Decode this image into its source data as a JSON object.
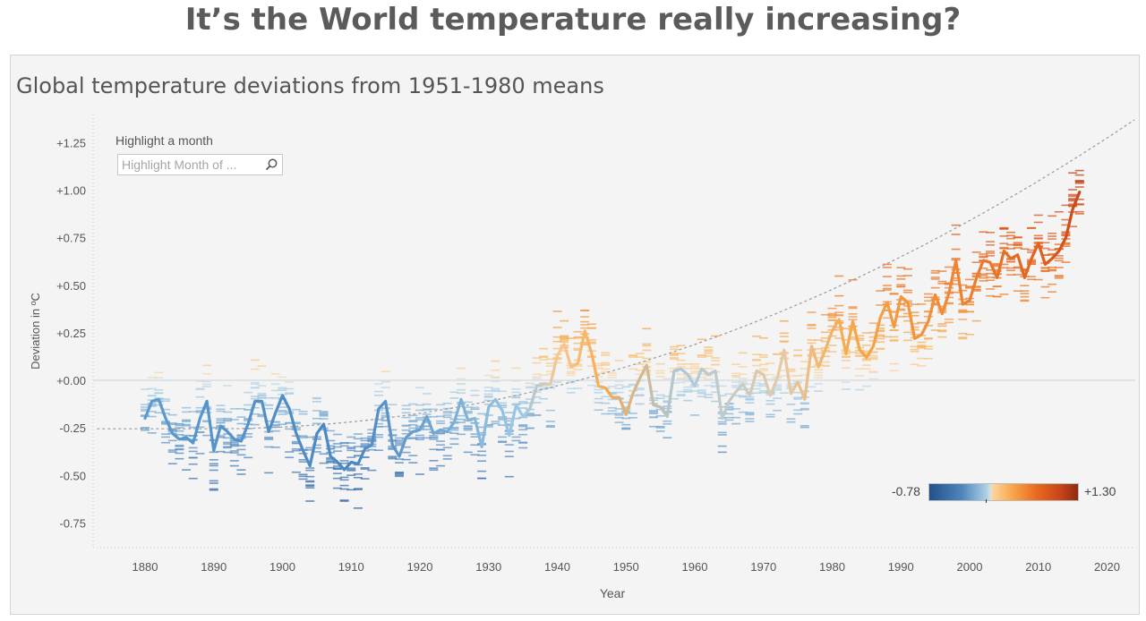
{
  "page": {
    "title": "It’s the World temperature really increasing?",
    "subtitle": "Global temperature deviations from 1951-1980 means"
  },
  "highlight": {
    "label": "Highlight a month",
    "placeholder": "Highlight Month of ..."
  },
  "legend": {
    "min_label": "-0.78",
    "max_label": "+1.30",
    "colors": [
      "#23508a",
      "#4f86bd",
      "#a9cde4",
      "#fbd7a2",
      "#f8a94f",
      "#ea6a1e",
      "#8e2a12"
    ]
  },
  "chart_data": {
    "type": "line",
    "title": "Global temperature deviations from 1951-1980 means",
    "xlabel": "Year",
    "ylabel": "Deviation in ºC",
    "xlim": [
      1873,
      2024
    ],
    "ylim": [
      -0.86,
      1.39
    ],
    "x_ticks": [
      1880,
      1890,
      1900,
      1910,
      1920,
      1930,
      1940,
      1950,
      1960,
      1970,
      1980,
      1990,
      2000,
      2010,
      2020
    ],
    "y_ticks": [
      1.25,
      1.0,
      0.75,
      0.5,
      0.25,
      0.0,
      -0.25,
      -0.5,
      -0.75
    ],
    "y_tick_labels": [
      "+1.25",
      "+1.00",
      "+0.75",
      "+0.50",
      "+0.25",
      "+0.00",
      "-0.25",
      "-0.50",
      "-0.75"
    ],
    "reference_line": 0.0,
    "trend_line": "quadratic",
    "series": [
      {
        "type": "line",
        "x": [
          1880,
          1881,
          1882,
          1883,
          1884,
          1885,
          1886,
          1887,
          1888,
          1889,
          1890,
          1891,
          1892,
          1893,
          1894,
          1895,
          1896,
          1897,
          1898,
          1899,
          1900,
          1901,
          1902,
          1903,
          1904,
          1905,
          1906,
          1907,
          1908,
          1909,
          1910,
          1911,
          1912,
          1913,
          1914,
          1915,
          1916,
          1917,
          1918,
          1919,
          1920,
          1921,
          1922,
          1923,
          1924,
          1925,
          1926,
          1927,
          1928,
          1929,
          1930,
          1931,
          1932,
          1933,
          1934,
          1935,
          1936,
          1937,
          1938,
          1939,
          1940,
          1941,
          1942,
          1943,
          1944,
          1945,
          1946,
          1947,
          1948,
          1949,
          1950,
          1951,
          1952,
          1953,
          1954,
          1955,
          1956,
          1957,
          1958,
          1959,
          1960,
          1961,
          1962,
          1963,
          1964,
          1965,
          1966,
          1967,
          1968,
          1969,
          1970,
          1971,
          1972,
          1973,
          1974,
          1975,
          1976,
          1977,
          1978,
          1979,
          1980,
          1981,
          1982,
          1983,
          1984,
          1985,
          1986,
          1987,
          1988,
          1989,
          1990,
          1991,
          1992,
          1993,
          1994,
          1995,
          1996,
          1997,
          1998,
          1999,
          2000,
          2001,
          2002,
          2003,
          2004,
          2005,
          2006,
          2007,
          2008,
          2009,
          2010,
          2011,
          2012,
          2013,
          2014,
          2015,
          2016
        ],
        "y": [
          -0.2,
          -0.11,
          -0.1,
          -0.2,
          -0.28,
          -0.31,
          -0.3,
          -0.33,
          -0.2,
          -0.11,
          -0.37,
          -0.24,
          -0.27,
          -0.31,
          -0.32,
          -0.23,
          -0.11,
          -0.11,
          -0.27,
          -0.17,
          -0.08,
          -0.15,
          -0.28,
          -0.37,
          -0.45,
          -0.28,
          -0.23,
          -0.4,
          -0.43,
          -0.47,
          -0.43,
          -0.44,
          -0.36,
          -0.34,
          -0.15,
          -0.11,
          -0.34,
          -0.4,
          -0.3,
          -0.27,
          -0.26,
          -0.19,
          -0.28,
          -0.26,
          -0.27,
          -0.22,
          -0.1,
          -0.21,
          -0.2,
          -0.35,
          -0.14,
          -0.1,
          -0.16,
          -0.29,
          -0.13,
          -0.19,
          -0.15,
          -0.03,
          -0.02,
          -0.02,
          0.13,
          0.19,
          0.07,
          0.09,
          0.26,
          0.14,
          -0.03,
          -0.04,
          -0.09,
          -0.09,
          -0.18,
          -0.07,
          0.01,
          0.08,
          -0.13,
          -0.14,
          -0.19,
          0.05,
          0.06,
          0.03,
          -0.03,
          0.06,
          0.03,
          0.05,
          -0.2,
          -0.11,
          -0.06,
          -0.02,
          -0.08,
          0.05,
          0.03,
          -0.08,
          0.01,
          0.16,
          -0.07,
          -0.01,
          -0.1,
          0.18,
          0.07,
          0.16,
          0.26,
          0.32,
          0.14,
          0.31,
          0.16,
          0.12,
          0.18,
          0.33,
          0.41,
          0.28,
          0.44,
          0.41,
          0.22,
          0.24,
          0.31,
          0.45,
          0.35,
          0.46,
          0.63,
          0.4,
          0.42,
          0.54,
          0.63,
          0.62,
          0.54,
          0.68,
          0.64,
          0.66,
          0.54,
          0.64,
          0.72,
          0.61,
          0.64,
          0.68,
          0.75,
          0.9,
          0.99
        ]
      }
    ]
  }
}
